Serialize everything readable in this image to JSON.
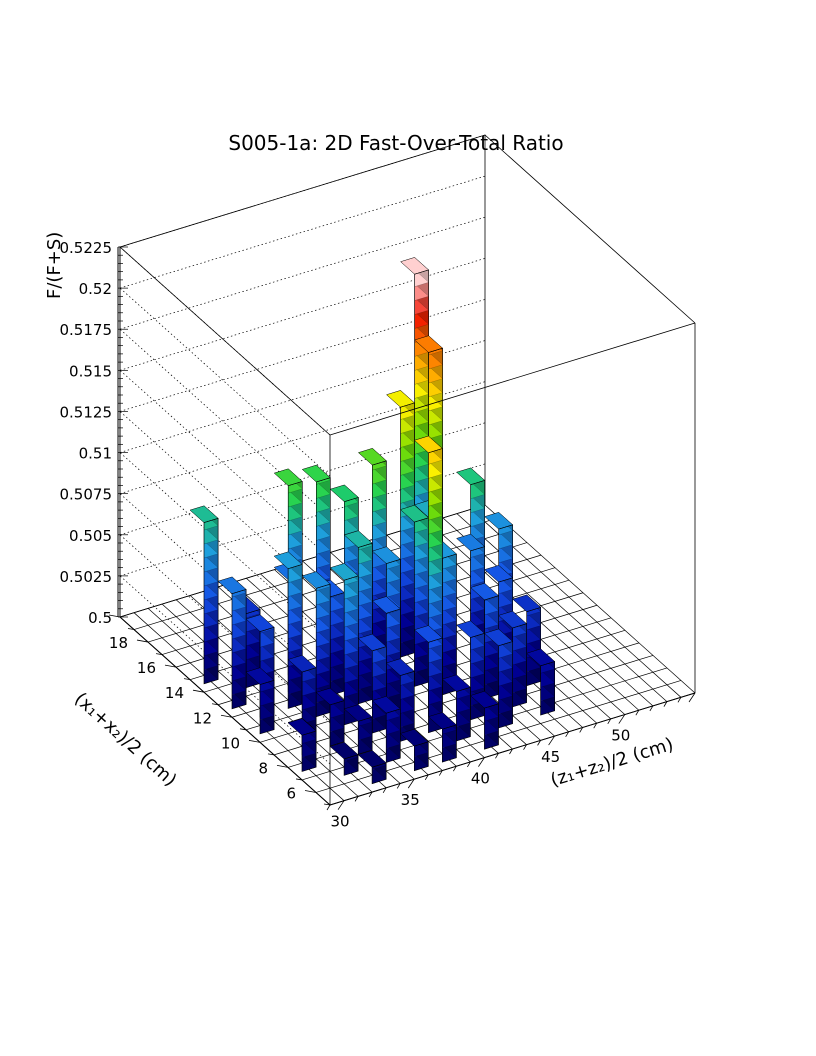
{
  "chart_data": {
    "type": "lego3d",
    "title": "S005-1a: 2D Fast-Over-Total Ratio",
    "xlabel": "(z₁+z₂)/2 (cm)",
    "ylabel": "(x₁+x₂)/2 (cm)",
    "zlabel": "F/(F+S)",
    "x_range": [
      29,
      55
    ],
    "y_range": [
      5,
      20
    ],
    "z_range": [
      0.5,
      0.5225
    ],
    "x_ticks": [
      "30",
      "35",
      "40",
      "45",
      "50"
    ],
    "y_ticks": [
      "6",
      "8",
      "10",
      "12",
      "14",
      "16",
      "18"
    ],
    "z_ticks": [
      "0.5",
      "0.5025",
      "0.505",
      "0.5075",
      "0.51",
      "0.5125",
      "0.515",
      "0.5175",
      "0.52",
      "0.5225"
    ],
    "grid": true,
    "bins": [
      {
        "x": 30,
        "y": 8,
        "z": 0.5022
      },
      {
        "x": 30,
        "y": 11,
        "z": 0.503
      },
      {
        "x": 30,
        "y": 13,
        "z": 0.507
      },
      {
        "x": 30,
        "y": 15,
        "z": 0.5098
      },
      {
        "x": 31,
        "y": 9,
        "z": 0.5012
      },
      {
        "x": 31,
        "y": 12,
        "z": 0.5052
      },
      {
        "x": 32,
        "y": 7,
        "z": 0.501
      },
      {
        "x": 32,
        "y": 10,
        "z": 0.504
      },
      {
        "x": 32,
        "y": 14,
        "z": 0.5045
      },
      {
        "x": 33,
        "y": 6,
        "z": 0.501
      },
      {
        "x": 33,
        "y": 9,
        "z": 0.5025
      },
      {
        "x": 33,
        "y": 12,
        "z": 0.5085
      },
      {
        "x": 34,
        "y": 8,
        "z": 0.502
      },
      {
        "x": 34,
        "y": 11,
        "z": 0.5078
      },
      {
        "x": 34,
        "y": 13,
        "z": 0.5068
      },
      {
        "x": 35,
        "y": 7,
        "z": 0.503
      },
      {
        "x": 35,
        "y": 10,
        "z": 0.5088
      },
      {
        "x": 35,
        "y": 14,
        "z": 0.5115
      },
      {
        "x": 36,
        "y": 6,
        "z": 0.5015
      },
      {
        "x": 36,
        "y": 9,
        "z": 0.505
      },
      {
        "x": 36,
        "y": 12,
        "z": 0.506
      },
      {
        "x": 37,
        "y": 8,
        "z": 0.504
      },
      {
        "x": 37,
        "y": 11,
        "z": 0.5095
      },
      {
        "x": 37,
        "y": 14,
        "z": 0.5112
      },
      {
        "x": 38,
        "y": 6,
        "z": 0.502
      },
      {
        "x": 38,
        "y": 10,
        "z": 0.506
      },
      {
        "x": 38,
        "y": 13,
        "z": 0.5105
      },
      {
        "x": 39,
        "y": 8,
        "z": 0.5055
      },
      {
        "x": 39,
        "y": 11,
        "z": 0.508
      },
      {
        "x": 40,
        "y": 7,
        "z": 0.503
      },
      {
        "x": 40,
        "y": 9,
        "z": 0.516
      },
      {
        "x": 40,
        "y": 13,
        "z": 0.5122
      },
      {
        "x": 41,
        "y": 6,
        "z": 0.5025
      },
      {
        "x": 41,
        "y": 11,
        "z": 0.51
      },
      {
        "x": 42,
        "y": 8,
        "z": 0.505
      },
      {
        "x": 42,
        "y": 10,
        "z": 0.5083
      },
      {
        "x": 42,
        "y": 13,
        "z": 0.5152
      },
      {
        "x": 43,
        "y": 7,
        "z": 0.505
      },
      {
        "x": 43,
        "y": 12,
        "z": 0.509
      },
      {
        "x": 44,
        "y": 9,
        "z": 0.506
      },
      {
        "x": 44,
        "y": 13,
        "z": 0.518
      },
      {
        "x": 44,
        "y": 14,
        "z": 0.522
      },
      {
        "x": 45,
        "y": 8,
        "z": 0.5048
      },
      {
        "x": 45,
        "y": 11,
        "z": 0.5072
      },
      {
        "x": 46,
        "y": 7,
        "z": 0.503
      },
      {
        "x": 46,
        "y": 10,
        "z": 0.5058
      },
      {
        "x": 46,
        "y": 12,
        "z": 0.5102
      },
      {
        "x": 47,
        "y": 9,
        "z": 0.5045
      },
      {
        "x": 47,
        "y": 11,
        "z": 0.508
      }
    ]
  }
}
